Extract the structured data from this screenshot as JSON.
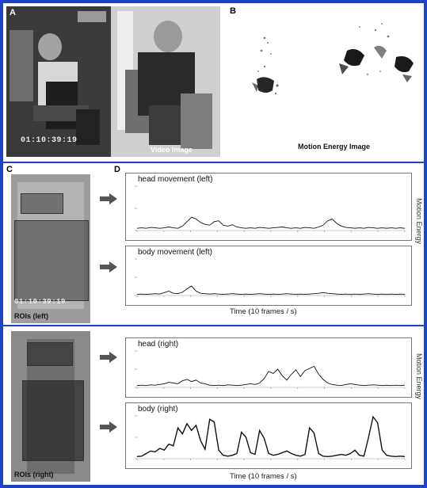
{
  "panels": {
    "a": {
      "letter": "A",
      "timestamp": "01:10:39:19",
      "caption": "Video Image"
    },
    "b": {
      "letter": "B",
      "caption": "Motion Energy Image"
    },
    "c": {
      "letter": "C",
      "timestamp": "01:10:39:19",
      "caption_left": "ROIs (left)",
      "caption_right": "ROIs (right)"
    },
    "d": {
      "letter": "D",
      "ylabel": "Motion Energy",
      "xlabel": "Time (10 frames / s)"
    }
  },
  "chart_data": [
    {
      "type": "line",
      "title": "head movement (left)",
      "xlabel": "",
      "ylabel": "",
      "x": [
        0,
        1,
        2,
        3,
        4,
        5,
        6,
        7,
        8,
        9,
        10,
        11,
        12,
        13,
        14,
        15,
        16,
        17,
        18,
        19,
        20,
        21,
        22,
        23,
        24,
        25,
        26,
        27,
        28,
        29,
        30,
        31,
        32,
        33,
        34,
        35,
        36,
        37,
        38,
        39,
        40,
        41,
        42,
        43,
        44,
        45,
        46,
        47,
        48,
        49,
        50,
        51,
        52,
        53,
        54,
        55,
        56,
        57,
        58,
        59
      ],
      "values": [
        0.05,
        0.06,
        0.05,
        0.07,
        0.06,
        0.05,
        0.06,
        0.08,
        0.06,
        0.05,
        0.1,
        0.2,
        0.3,
        0.26,
        0.18,
        0.14,
        0.12,
        0.2,
        0.22,
        0.12,
        0.1,
        0.13,
        0.08,
        0.06,
        0.05,
        0.06,
        0.05,
        0.07,
        0.06,
        0.05,
        0.06,
        0.07,
        0.08,
        0.06,
        0.05,
        0.06,
        0.05,
        0.07,
        0.06,
        0.05,
        0.08,
        0.12,
        0.22,
        0.26,
        0.16,
        0.1,
        0.07,
        0.06,
        0.05,
        0.06,
        0.05,
        0.07,
        0.06,
        0.05,
        0.06,
        0.05,
        0.06,
        0.05,
        0.06,
        0.05
      ],
      "ylim": [
        0,
        1
      ],
      "grid": false
    },
    {
      "type": "line",
      "title": "body movement (left)",
      "xlabel": "Time (10 frames / s)",
      "ylabel": "",
      "x": [
        0,
        1,
        2,
        3,
        4,
        5,
        6,
        7,
        8,
        9,
        10,
        11,
        12,
        13,
        14,
        15,
        16,
        17,
        18,
        19,
        20,
        21,
        22,
        23,
        24,
        25,
        26,
        27,
        28,
        29,
        30,
        31,
        32,
        33,
        34,
        35,
        36,
        37,
        38,
        39,
        40,
        41,
        42,
        43,
        44,
        45,
        46,
        47,
        48,
        49,
        50,
        51,
        52,
        53,
        54,
        55,
        56,
        57,
        58,
        59
      ],
      "values": [
        0.03,
        0.04,
        0.03,
        0.04,
        0.05,
        0.04,
        0.08,
        0.12,
        0.06,
        0.05,
        0.09,
        0.18,
        0.26,
        0.12,
        0.06,
        0.05,
        0.04,
        0.05,
        0.04,
        0.03,
        0.04,
        0.05,
        0.04,
        0.03,
        0.04,
        0.03,
        0.04,
        0.05,
        0.04,
        0.03,
        0.04,
        0.03,
        0.04,
        0.05,
        0.04,
        0.03,
        0.04,
        0.03,
        0.04,
        0.05,
        0.06,
        0.08,
        0.06,
        0.05,
        0.04,
        0.03,
        0.04,
        0.03,
        0.04,
        0.03,
        0.04,
        0.05,
        0.04,
        0.03,
        0.04,
        0.03,
        0.04,
        0.03,
        0.04,
        0.03
      ],
      "ylim": [
        0,
        1
      ],
      "grid": false
    },
    {
      "type": "line",
      "title": "head (right)",
      "xlabel": "",
      "ylabel": "",
      "x": [
        0,
        1,
        2,
        3,
        4,
        5,
        6,
        7,
        8,
        9,
        10,
        11,
        12,
        13,
        14,
        15,
        16,
        17,
        18,
        19,
        20,
        21,
        22,
        23,
        24,
        25,
        26,
        27,
        28,
        29,
        30,
        31,
        32,
        33,
        34,
        35,
        36,
        37,
        38,
        39,
        40,
        41,
        42,
        43,
        44,
        45,
        46,
        47,
        48,
        49,
        50,
        51,
        52,
        53,
        54,
        55,
        56,
        57,
        58,
        59
      ],
      "values": [
        0.05,
        0.06,
        0.05,
        0.07,
        0.06,
        0.08,
        0.1,
        0.14,
        0.12,
        0.1,
        0.18,
        0.22,
        0.16,
        0.2,
        0.12,
        0.1,
        0.06,
        0.05,
        0.06,
        0.05,
        0.07,
        0.06,
        0.05,
        0.06,
        0.08,
        0.1,
        0.08,
        0.12,
        0.24,
        0.44,
        0.38,
        0.5,
        0.32,
        0.2,
        0.36,
        0.48,
        0.3,
        0.46,
        0.52,
        0.58,
        0.36,
        0.22,
        0.12,
        0.08,
        0.06,
        0.05,
        0.08,
        0.1,
        0.08,
        0.06,
        0.05,
        0.06,
        0.07,
        0.06,
        0.05,
        0.06,
        0.05,
        0.06,
        0.05,
        0.06
      ],
      "ylim": [
        0,
        1
      ],
      "grid": false
    },
    {
      "type": "line",
      "title": "body (right)",
      "xlabel": "Time (10 frames / s)",
      "ylabel": "",
      "x": [
        0,
        1,
        2,
        3,
        4,
        5,
        6,
        7,
        8,
        9,
        10,
        11,
        12,
        13,
        14,
        15,
        16,
        17,
        18,
        19,
        20,
        21,
        22,
        23,
        24,
        25,
        26,
        27,
        28,
        29,
        30,
        31,
        32,
        33,
        34,
        35,
        36,
        37,
        38,
        39,
        40,
        41,
        42,
        43,
        44,
        45,
        46,
        47,
        48,
        49,
        50,
        51,
        52,
        53,
        54,
        55,
        56,
        57,
        58,
        59
      ],
      "values": [
        0.05,
        0.06,
        0.12,
        0.18,
        0.16,
        0.24,
        0.2,
        0.34,
        0.3,
        0.72,
        0.58,
        0.82,
        0.66,
        0.78,
        0.42,
        0.22,
        0.92,
        0.86,
        0.2,
        0.08,
        0.06,
        0.08,
        0.12,
        0.62,
        0.5,
        0.14,
        0.1,
        0.66,
        0.48,
        0.12,
        0.08,
        0.1,
        0.14,
        0.18,
        0.12,
        0.08,
        0.06,
        0.1,
        0.72,
        0.6,
        0.12,
        0.06,
        0.05,
        0.06,
        0.08,
        0.1,
        0.08,
        0.12,
        0.2,
        0.08,
        0.06,
        0.5,
        0.98,
        0.84,
        0.2,
        0.08,
        0.06,
        0.05,
        0.06,
        0.05
      ],
      "ylim": [
        0,
        1
      ],
      "grid": false
    }
  ]
}
